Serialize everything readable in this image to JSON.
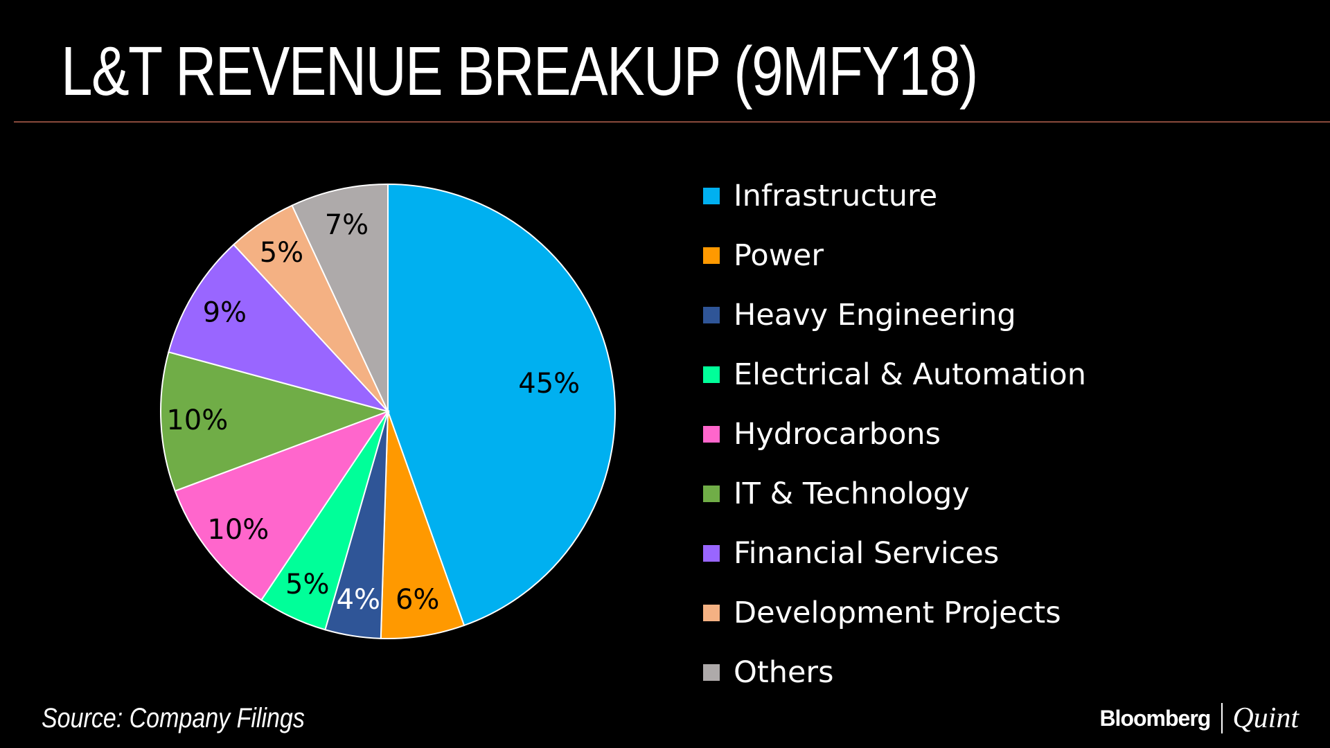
{
  "header": {
    "title": "L&T REVENUE BREAKUP (9MFY18)"
  },
  "footer": {
    "source": "Source: Company Filings",
    "brand_primary": "Bloomberg",
    "brand_secondary": "Quint"
  },
  "colors": {
    "background": "#000000",
    "divider": "#8a4a3c",
    "label_text": "#000000",
    "slice_border": "#ffffff"
  },
  "chart_data": {
    "type": "pie",
    "title": "L&T REVENUE BREAKUP (9MFY18)",
    "legend_position": "right",
    "unit": "%",
    "slices": [
      {
        "name": "Infrastructure",
        "value": 45,
        "label": "45%",
        "color": "#00b0f0"
      },
      {
        "name": "Power",
        "value": 6,
        "label": "6%",
        "color": "#ff9900"
      },
      {
        "name": "Heavy Engineering",
        "value": 4,
        "label": "4%",
        "color": "#2f5597"
      },
      {
        "name": "Electrical & Automation",
        "value": 5,
        "label": "5%",
        "color": "#00ff99"
      },
      {
        "name": "Hydrocarbons",
        "value": 10,
        "label": "10%",
        "color": "#ff66cc"
      },
      {
        "name": "IT & Technology",
        "value": 10,
        "label": "10%",
        "color": "#70ad47"
      },
      {
        "name": "Financial Services",
        "value": 9,
        "label": "9%",
        "color": "#9966ff"
      },
      {
        "name": "Development Projects",
        "value": 5,
        "label": "5%",
        "color": "#f4b183"
      },
      {
        "name": "Others",
        "value": 7,
        "label": "7%",
        "color": "#aeaaaa"
      }
    ]
  }
}
